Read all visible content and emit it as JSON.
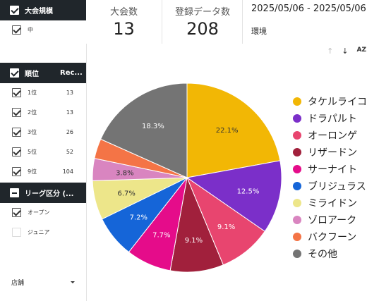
{
  "filters": {
    "size": {
      "header": "大会規模",
      "items": [
        {
          "label": "中",
          "checked": true
        }
      ]
    },
    "rank": {
      "header_col1": "順位",
      "header_col2": "Rec...",
      "items": [
        {
          "label": "1位",
          "value": "13",
          "checked": true
        },
        {
          "label": "2位",
          "value": "13",
          "checked": true
        },
        {
          "label": "3位",
          "value": "26",
          "checked": true
        },
        {
          "label": "5位",
          "value": "52",
          "checked": true
        },
        {
          "label": "9位",
          "value": "104",
          "checked": true
        }
      ]
    },
    "league": {
      "header": "リーグ区分 (...",
      "items": [
        {
          "label": "オープン",
          "checked": true
        },
        {
          "label": "ジュニア",
          "checked": false
        }
      ]
    },
    "shop": {
      "label": "店舗"
    }
  },
  "scorecards": [
    {
      "label": "大会数",
      "value": "13"
    },
    {
      "label": "登録データ数",
      "value": "208"
    }
  ],
  "date_range": "2025/05/06 - 2025/05/06",
  "env_label": "環境",
  "toolbar": {
    "sort_up": "↑",
    "sort_down": "↓",
    "az": "AZ"
  },
  "chart_data": {
    "type": "pie",
    "slices": [
      {
        "label": "タケルライコ",
        "value": 22.1,
        "pct_label": "22.1%",
        "color": "#f2b705"
      },
      {
        "label": "ドラパルト",
        "value": 12.5,
        "pct_label": "12.5%",
        "color": "#7b2fc9"
      },
      {
        "label": "オーロンゲ",
        "value": 9.1,
        "pct_label": "9.1%",
        "color": "#e8456f"
      },
      {
        "label": "リザードン",
        "value": 9.1,
        "pct_label": "9.1%",
        "color": "#a1203c"
      },
      {
        "label": "サーナイト",
        "value": 7.7,
        "pct_label": "7.7%",
        "color": "#e50c8a"
      },
      {
        "label": "ブリジュラス",
        "value": 7.2,
        "pct_label": "7.2%",
        "color": "#1565d8"
      },
      {
        "label": "ミライドン",
        "value": 6.7,
        "pct_label": "6.7%",
        "color": "#ede68a"
      },
      {
        "label": "ゾロアーク",
        "value": 3.8,
        "pct_label": "3.8%",
        "color": "#d985c0"
      },
      {
        "label": "バクフーン",
        "value": 3.4,
        "pct_label": "",
        "color": "#f47446"
      },
      {
        "label": "その他",
        "value": 18.3,
        "pct_label": "18.3%",
        "color": "#747474"
      }
    ],
    "legend_position": "right"
  }
}
